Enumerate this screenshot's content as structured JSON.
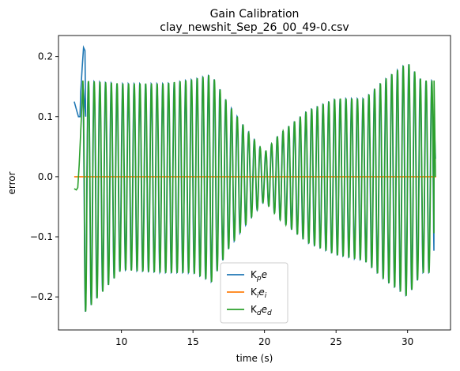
{
  "chart_data": {
    "type": "line",
    "title": "Gain Calibration",
    "subtitle": "clay_newshit_Sep_26_00_49-0.csv",
    "xlabel": "time (s)",
    "ylabel": "error",
    "xlim": [
      5.6,
      33.0
    ],
    "ylim": [
      -0.255,
      0.235
    ],
    "xticks": [
      10,
      15,
      20,
      25,
      30
    ],
    "xtick_labels": [
      "10",
      "15",
      "20",
      "25",
      "30"
    ],
    "yticks": [
      -0.2,
      -0.1,
      0.0,
      0.1,
      0.2
    ],
    "ytick_labels": [
      "−0.2",
      "−0.1",
      "0.0",
      "0.1",
      "0.2"
    ],
    "grid": false,
    "legend_position": "bottom-center",
    "legend_entries": [
      {
        "label": "K",
        "sub": "p",
        "tail": "e",
        "sub2": ""
      },
      {
        "label": "K",
        "sub": "i",
        "tail": "e",
        "sub2": "i"
      },
      {
        "label": "K",
        "sub": "d",
        "tail": "e",
        "sub2": "d"
      }
    ],
    "colors": [
      "#1f77b4",
      "#ff7f0e",
      "#2ca02c"
    ],
    "oscillation": {
      "start_time": 7.3,
      "end_time": 31.85,
      "period": 0.4,
      "envelope_times": [
        7.3,
        10,
        13,
        15,
        16.3,
        17.5,
        19,
        20,
        21,
        23,
        25,
        27,
        28.3,
        30,
        31,
        31.85
      ],
      "upper_envelope": [
        0.16,
        0.155,
        0.155,
        0.162,
        0.17,
        0.12,
        0.07,
        0.04,
        0.07,
        0.11,
        0.13,
        0.13,
        0.16,
        0.19,
        0.16,
        0.16
      ],
      "lower_envelope": [
        -0.23,
        -0.155,
        -0.16,
        -0.16,
        -0.175,
        -0.12,
        -0.07,
        -0.04,
        -0.07,
        -0.11,
        -0.13,
        -0.14,
        -0.17,
        -0.2,
        -0.16,
        -0.16
      ]
    },
    "series": [
      {
        "name": "Kpe",
        "color": "#1f77b4",
        "start_points": [
          [
            6.7,
            0.125
          ],
          [
            6.9,
            0.108
          ],
          [
            7.0,
            0.1
          ],
          [
            7.1,
            0.1
          ],
          [
            7.15,
            0.14
          ],
          [
            7.25,
            0.18
          ],
          [
            7.35,
            0.215
          ],
          [
            7.45,
            0.21
          ],
          [
            7.5,
            0.1
          ]
        ],
        "end_points": [
          [
            31.85,
            0.1
          ],
          [
            31.95,
            0.03
          ]
        ]
      },
      {
        "name": "Kiei",
        "color": "#ff7f0e",
        "x": [
          6.7,
          32.0
        ],
        "y": [
          0.0,
          0.0
        ]
      },
      {
        "name": "Kded",
        "color": "#2ca02c",
        "start_points": [
          [
            6.7,
            -0.02
          ],
          [
            6.85,
            -0.022
          ],
          [
            6.95,
            -0.018
          ],
          [
            7.05,
            0.02
          ],
          [
            7.2,
            0.1
          ],
          [
            7.3,
            0.16
          ]
        ],
        "end_points": [
          [
            31.85,
            0.16
          ],
          [
            31.95,
            0.0
          ]
        ]
      }
    ]
  }
}
